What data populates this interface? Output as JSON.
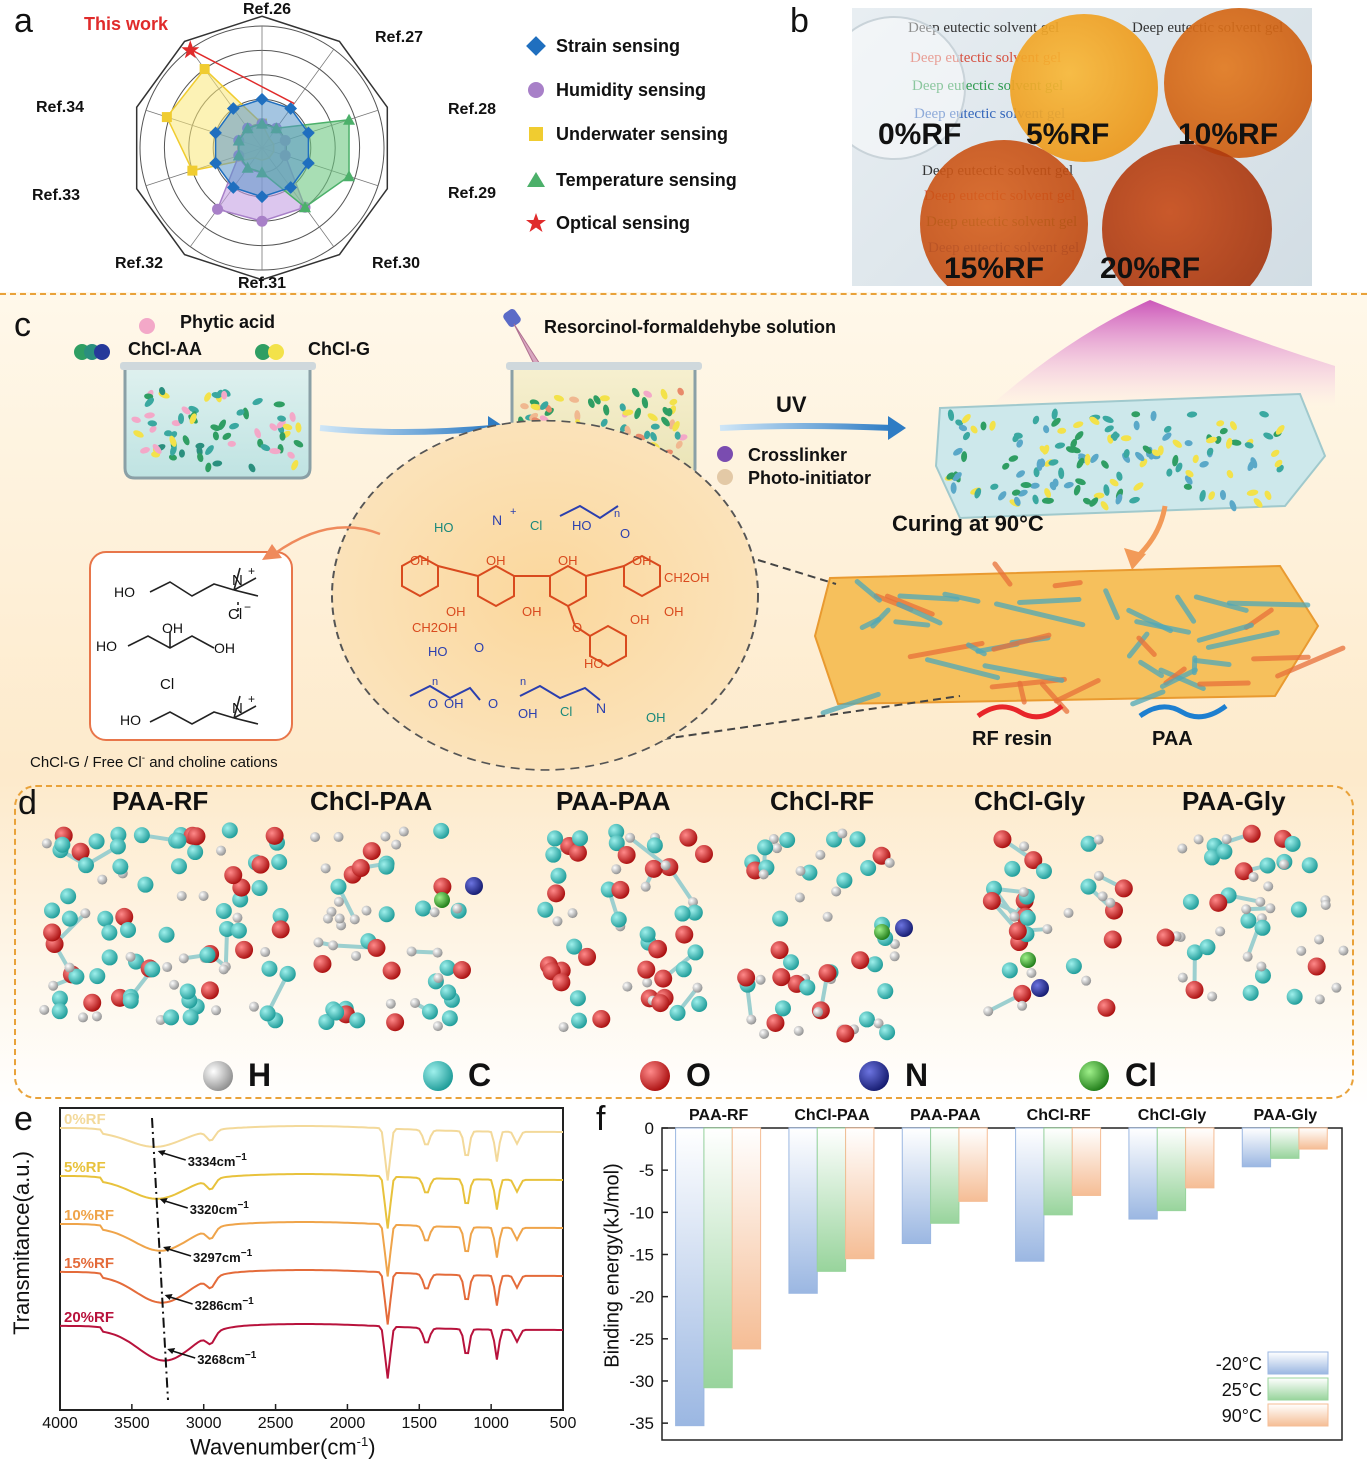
{
  "panels": {
    "a": "a",
    "b": "b",
    "c": "c",
    "d": "d",
    "e": "e",
    "f": "f"
  },
  "radar": {
    "refs": [
      "Ref.26",
      "Ref.27",
      "Ref.28",
      "Ref.29",
      "Ref.30",
      "Ref.31",
      "Ref.32",
      "Ref.33",
      "Ref.34"
    ],
    "this_work": "This work",
    "legend": [
      {
        "label": "Strain sensing",
        "color": "#1f6fbf",
        "marker": "diamond"
      },
      {
        "label": "Humidity sensing",
        "color": "#a880c8",
        "marker": "circle"
      },
      {
        "label": "Underwater sensing",
        "color": "#f0cc30",
        "marker": "square"
      },
      {
        "label": "Temperature sensing",
        "color": "#4cb06a",
        "marker": "triangle"
      },
      {
        "label": "Optical sensing",
        "color": "#e02b2b",
        "marker": "star"
      }
    ]
  },
  "photo": {
    "labels": [
      "0%RF",
      "5%RF",
      "10%RF",
      "15%RF",
      "20%RF"
    ],
    "paper_text": [
      "Deep eutectic solvent gel",
      "Deep eutectic solvent gel",
      "Deep eutectic solvent gel",
      "Deep eutectic solvent gel"
    ],
    "dish_colors": [
      "#f3f5f6",
      "#f0a020",
      "#de6a14",
      "#cf4d10",
      "#b53a0e"
    ]
  },
  "process": {
    "phytic_acid": "Phytic acid",
    "chcl_aa": "ChCl-AA",
    "chcl_g": "ChCl-G",
    "rf_solution": "Resorcinol-formaldehybe solution",
    "uv": "UV",
    "crosslinker": "Crosslinker",
    "photo_initiator": "Photo-initiator",
    "curing": "Curing at 90°C",
    "rf_resin": "RF resin",
    "paa": "PAA",
    "box_caption": "ChCl-G / Free Cl",
    "box_caption_sup": "-",
    "box_caption_tail": " and choline cations",
    "box_chem": {
      "ho": "HO",
      "n": "N",
      "plus": "+",
      "cl": "Cl",
      "minus": "−",
      "oh": "OH",
      "ho2": "HO",
      "oh2": "OH",
      "cl2": "Cl",
      "ho3": "HO",
      "n2": "N",
      "plus2": "+"
    },
    "circle_chem": {
      "oh": "OH",
      "ch2oh": "CH2OH",
      "ho": "HO",
      "cl": "Cl",
      "n": "N",
      "o": "O",
      "n_sub": "n",
      "oh_plus": "+"
    }
  },
  "models": {
    "titles": [
      "PAA-RF",
      "ChCl-PAA",
      "PAA-PAA",
      "ChCl-RF",
      "ChCl-Gly",
      "PAA-Gly"
    ],
    "atoms": [
      {
        "symbol": "H",
        "color": "#e6e6e6"
      },
      {
        "symbol": "C",
        "color": "#3fc2bf"
      },
      {
        "symbol": "O",
        "color": "#d81e1e"
      },
      {
        "symbol": "N",
        "color": "#27309a"
      },
      {
        "symbol": "Cl",
        "color": "#3cae2e"
      }
    ]
  },
  "ftir": {
    "xlabel": "Wavenumber(cm",
    "xlabel_sup": "-1",
    "xlabel_tail": ")",
    "ylabel": "Transmitance(a.u.)",
    "x_ticks": [
      4000,
      3500,
      3000,
      2500,
      2000,
      1500,
      1000,
      500
    ],
    "series": [
      {
        "name": "0%RF",
        "color": "#f3d99a",
        "peak": "3334cm",
        "peak_x": 3334
      },
      {
        "name": "5%RF",
        "color": "#e8c23c",
        "peak": "3320cm",
        "peak_x": 3320
      },
      {
        "name": "10%RF",
        "color": "#efa44a",
        "peak": "3297cm",
        "peak_x": 3297
      },
      {
        "name": "15%RF",
        "color": "#e46b3a",
        "peak": "3286cm",
        "peak_x": 3286
      },
      {
        "name": "20%RF",
        "color": "#b8123c",
        "peak": "3268cm",
        "peak_x": 3268
      }
    ],
    "peak_sup": "−1"
  },
  "chart_data": {
    "type": "bar",
    "categories": [
      "PAA-RF",
      "ChCl-PAA",
      "PAA-PAA",
      "ChCl-RF",
      "ChCl-Gly",
      "PAA-Gly"
    ],
    "series": [
      {
        "name": "-20°C",
        "color": "#9bb7e2",
        "values": [
          -35.3,
          -19.6,
          -13.7,
          -15.8,
          -10.8,
          -4.6
        ]
      },
      {
        "name": "25°C",
        "color": "#98d49c",
        "values": [
          -30.8,
          -17.0,
          -11.3,
          -10.3,
          -9.8,
          -3.6
        ]
      },
      {
        "name": "90°C",
        "color": "#f5bd95",
        "values": [
          -26.2,
          -15.5,
          -8.7,
          -8.0,
          -7.1,
          -2.5
        ]
      }
    ],
    "ylabel": "Binding energy(kJ/mol)",
    "ylim": [
      -37,
      0
    ],
    "y_ticks": [
      0,
      -5,
      -10,
      -15,
      -20,
      -25,
      -30,
      -35
    ],
    "legend": "bottom-right"
  }
}
